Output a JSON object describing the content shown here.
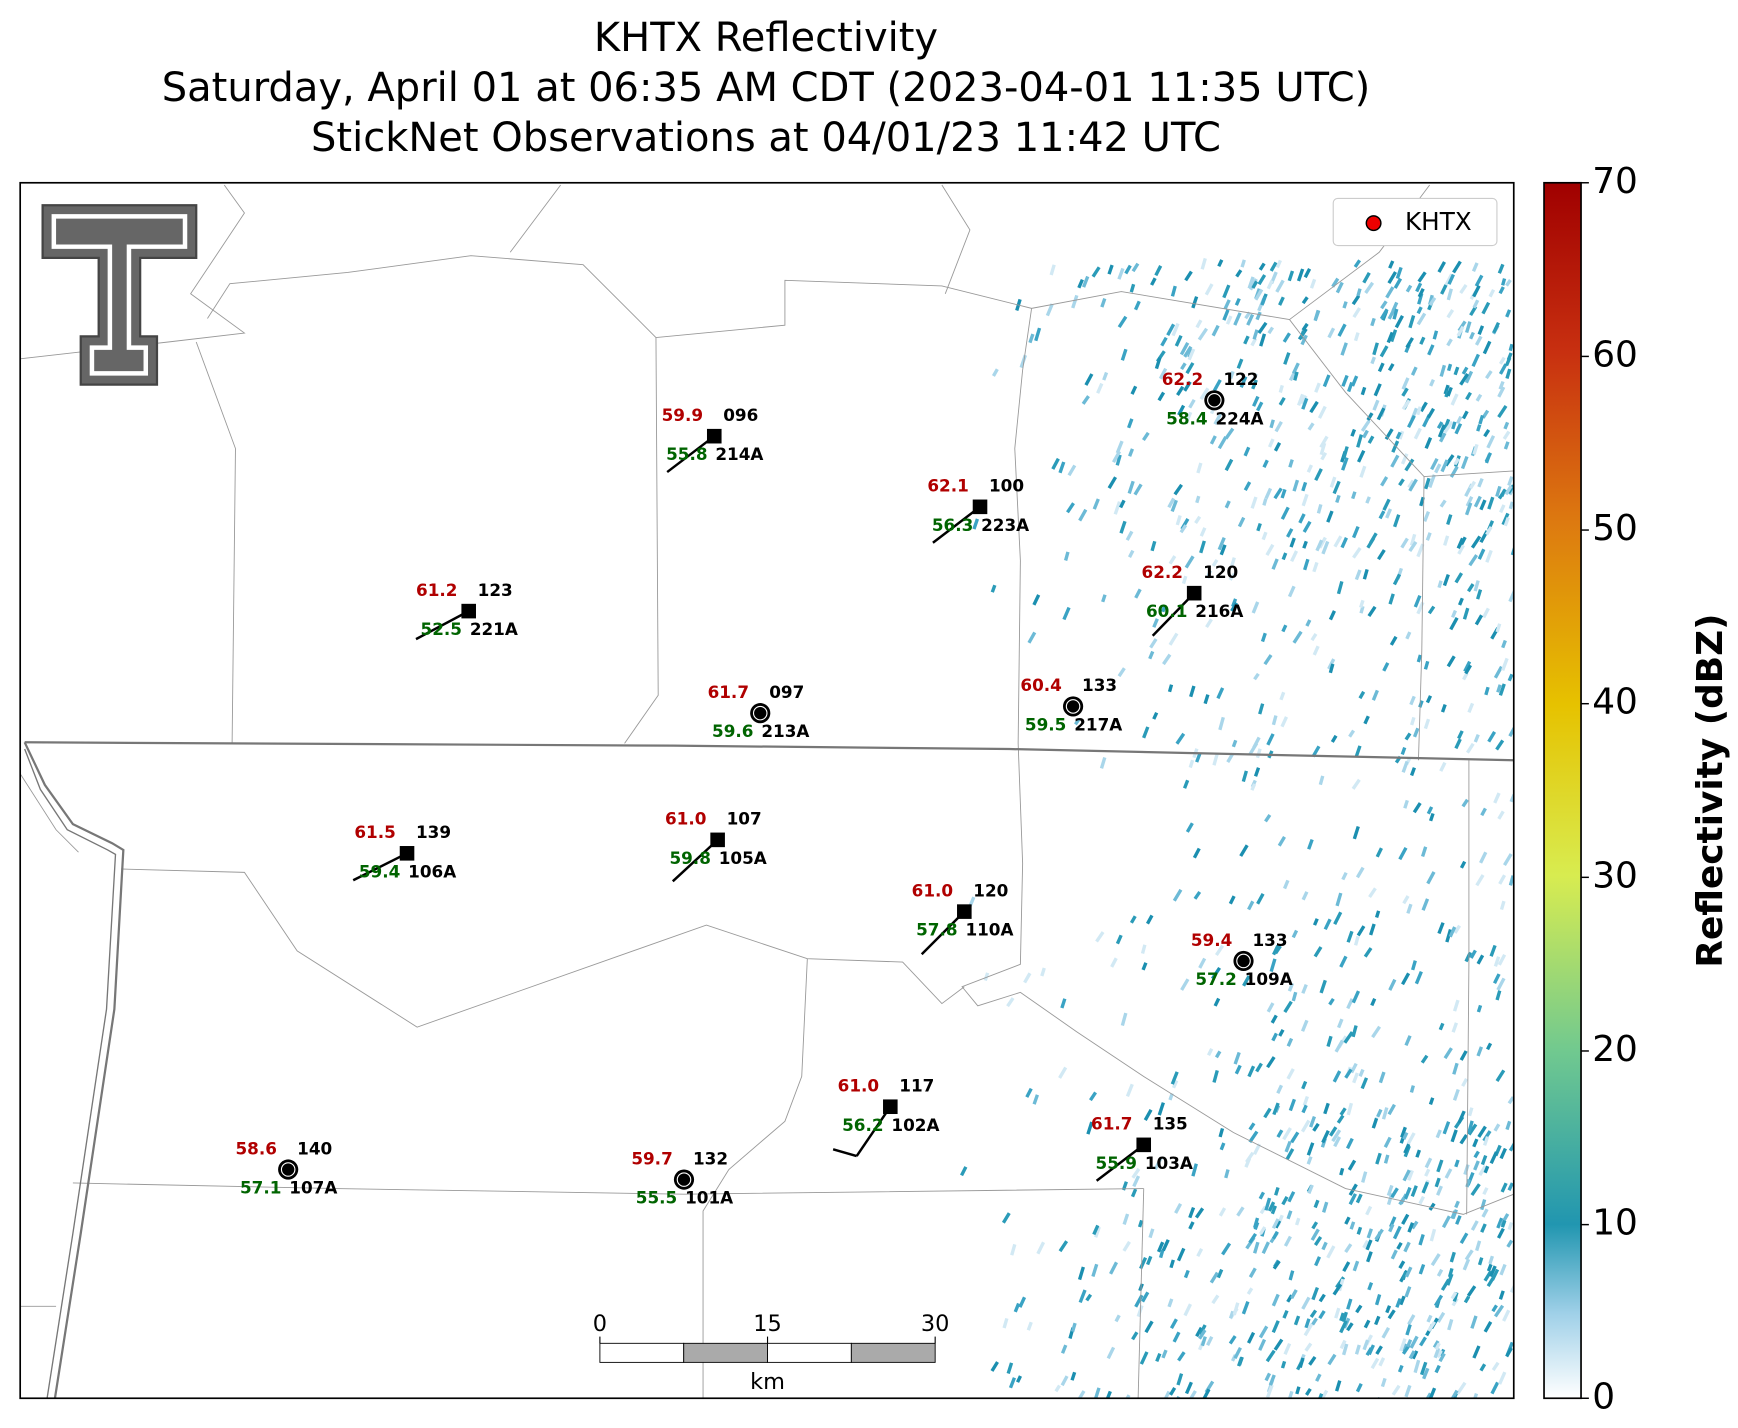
{
  "title_lines": [
    "KHTX Reflectivity",
    "Saturday, April 01 at 06:35 AM CDT (2023-04-01 11:35 UTC)",
    "StickNet Observations at 04/01/23 11:42 UTC"
  ],
  "legend": "KHTX",
  "stations": [
    {
      "temp": "59.9",
      "dew": "55.8",
      "number": "096",
      "id": "214A",
      "marker": "square"
    },
    {
      "temp": "62.2",
      "dew": "58.4",
      "number": "122",
      "id": "224A",
      "marker": "circle"
    },
    {
      "temp": "62.1",
      "dew": "56.3",
      "number": "100",
      "id": "223A",
      "marker": "square"
    },
    {
      "temp": "61.2",
      "dew": "52.5",
      "number": "123",
      "id": "221A",
      "marker": "square"
    },
    {
      "temp": "62.2",
      "dew": "60.1",
      "number": "120",
      "id": "216A",
      "marker": "square"
    },
    {
      "temp": "61.7",
      "dew": "59.6",
      "number": "097",
      "id": "213A",
      "marker": "circle"
    },
    {
      "temp": "60.4",
      "dew": "59.5",
      "number": "133",
      "id": "217A",
      "marker": "circle"
    },
    {
      "temp": "61.5",
      "dew": "59.4",
      "number": "139",
      "id": "106A",
      "marker": "square"
    },
    {
      "temp": "61.0",
      "dew": "59.8",
      "number": "107",
      "id": "105A",
      "marker": "square"
    },
    {
      "temp": "61.0",
      "dew": "57.8",
      "number": "120",
      "id": "110A",
      "marker": "square"
    },
    {
      "temp": "59.4",
      "dew": "57.2",
      "number": "133",
      "id": "109A",
      "marker": "circle"
    },
    {
      "temp": "61.0",
      "dew": "56.2",
      "number": "117",
      "id": "102A",
      "marker": "square"
    },
    {
      "temp": "61.7",
      "dew": "55.9",
      "number": "135",
      "id": "103A",
      "marker": "square"
    },
    {
      "temp": "58.6",
      "dew": "57.1",
      "number": "140",
      "id": "107A",
      "marker": "circle"
    },
    {
      "temp": "59.7",
      "dew": "55.5",
      "number": "132",
      "id": "101A",
      "marker": "circle"
    }
  ],
  "scalebar": {
    "ticks": [
      0,
      15,
      30
    ],
    "unit": "km"
  },
  "colorbar": {
    "label": "Reflectivity (dBZ)",
    "lim": [
      0,
      70
    ],
    "ticks": [
      0,
      10,
      20,
      30,
      40,
      50,
      60,
      70
    ]
  }
}
